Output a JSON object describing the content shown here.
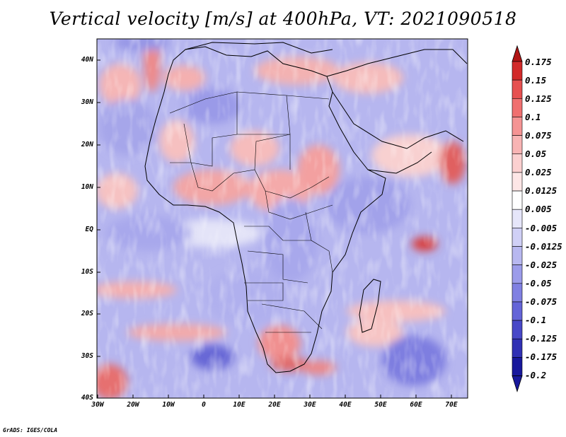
{
  "title": "Vertical velocity [m/s] at 400hPa, VT: 2021090518",
  "credit": "GrADS: IGES/COLA",
  "map": {
    "lat_ticks": [
      "40N",
      "30N",
      "20N",
      "10N",
      "EQ",
      "10S",
      "20S",
      "30S",
      "40S"
    ],
    "lon_ticks": [
      "30W",
      "20W",
      "10W",
      "0",
      "10E",
      "20E",
      "30E",
      "40E",
      "50E",
      "60E",
      "70E"
    ],
    "lat_range": [
      -40,
      45
    ],
    "lon_range": [
      -30,
      75
    ]
  },
  "colorbar": {
    "labels": [
      "0.175",
      "0.15",
      "0.125",
      "0.1",
      "0.075",
      "0.05",
      "0.025",
      "0.0125",
      "0.005",
      "-0.005",
      "-0.0125",
      "-0.025",
      "-0.05",
      "-0.075",
      "-0.1",
      "-0.125",
      "-0.175",
      "-0.2"
    ],
    "colors": [
      "#b01414",
      "#d22a2a",
      "#e65050",
      "#f07070",
      "#f59494",
      "#f8b4b4",
      "#fbd0d0",
      "#fde6e6",
      "#ffffff",
      "#e6e6fa",
      "#d0d0f6",
      "#b8b8f0",
      "#9c9cea",
      "#8080e2",
      "#6464d8",
      "#4848c8",
      "#3030b4",
      "#18189c"
    ]
  },
  "legend_colors": {
    "positive": "#e65050",
    "negative": "#6464d8",
    "land_border": "#000000"
  }
}
